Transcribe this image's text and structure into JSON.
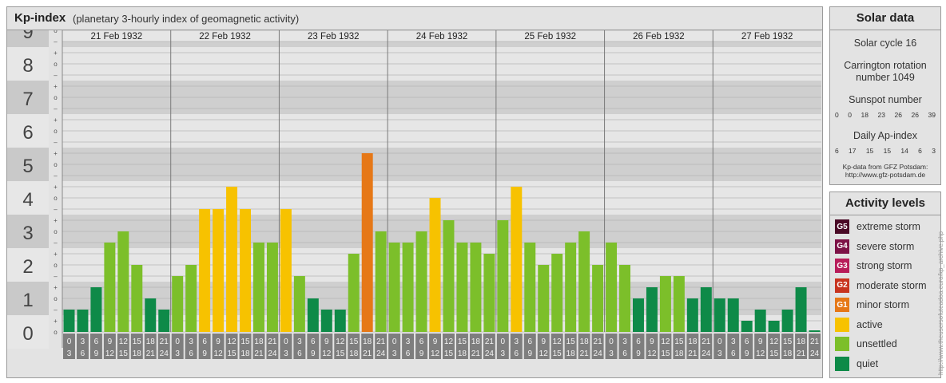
{
  "title": "Kp-index",
  "subtitle": "(planetary 3-hourly index of geomagnetic activity)",
  "chart_data": {
    "type": "bar",
    "y_range": [
      0,
      9
    ],
    "y_tick_labels": [
      "0",
      "1",
      "2",
      "3",
      "4",
      "5",
      "6",
      "7",
      "8",
      "9"
    ],
    "y_subticks": [
      "–",
      "o",
      "+"
    ],
    "days": [
      "21 Feb 1932",
      "22 Feb 1932",
      "23 Feb 1932",
      "24 Feb 1932",
      "25 Feb 1932",
      "26 Feb 1932",
      "27 Feb 1932"
    ],
    "interval_start_labels": [
      "0",
      "3",
      "6",
      "9",
      "12",
      "15",
      "18",
      "21"
    ],
    "interval_end_labels": [
      "3",
      "6",
      "9",
      "12",
      "15",
      "18",
      "21",
      "24"
    ],
    "values": [
      [
        0.667,
        0.667,
        1.333,
        2.667,
        3.0,
        2.0,
        1.0,
        0.667
      ],
      [
        1.667,
        2.0,
        3.667,
        3.667,
        4.333,
        3.667,
        2.667,
        2.667
      ],
      [
        3.667,
        1.667,
        1.0,
        0.667,
        0.667,
        2.333,
        5.333,
        3.0
      ],
      [
        2.667,
        2.667,
        3.0,
        4.0,
        3.333,
        2.667,
        2.667,
        2.333
      ],
      [
        3.333,
        4.333,
        2.667,
        2.0,
        2.333,
        2.667,
        3.0,
        2.0
      ],
      [
        2.667,
        2.0,
        1.0,
        1.333,
        1.667,
        1.667,
        1.0,
        1.333
      ],
      [
        1.0,
        1.0,
        0.333,
        0.667,
        0.333,
        0.667,
        1.333,
        0.0
      ]
    ],
    "last_bar_partial": true
  },
  "activity_colors": {
    "quiet": "#0e8a48",
    "unsettled": "#7cbf2a",
    "active": "#f7c200",
    "minor_storm": "#e67817",
    "moderate_storm": "#c8341f",
    "strong_storm": "#b81d5a",
    "severe_storm": "#7d1146",
    "extreme_storm": "#4a0a26"
  },
  "solar_data": {
    "heading": "Solar data",
    "solar_cycle": "Solar cycle 16",
    "carrington_line1": "Carrington rotation",
    "carrington_line2": "number 1049",
    "sunspot_heading": "Sunspot number",
    "sunspot_values": [
      "0",
      "0",
      "18",
      "23",
      "26",
      "26",
      "39"
    ],
    "ap_heading": "Daily Ap-index",
    "ap_values": [
      "6",
      "17",
      "15",
      "15",
      "14",
      "6",
      "3"
    ],
    "credit_line1": "Kp-data from GFZ Potsdam:",
    "credit_line2": "http://www.gfz-potsdam.de"
  },
  "activity_levels": {
    "heading": "Activity levels",
    "items": [
      {
        "code": "G5",
        "label": "extreme storm",
        "color": "#4a0a26"
      },
      {
        "code": "G4",
        "label": "severe storm",
        "color": "#7d1146"
      },
      {
        "code": "G3",
        "label": "strong storm",
        "color": "#b81d5a"
      },
      {
        "code": "G2",
        "label": "moderate storm",
        "color": "#c8341f"
      },
      {
        "code": "G1",
        "label": "minor storm",
        "color": "#e67817"
      },
      {
        "code": "",
        "label": "active",
        "color": "#f7c200"
      },
      {
        "code": "",
        "label": "unsettled",
        "color": "#7cbf2a"
      },
      {
        "code": "",
        "label": "quiet",
        "color": "#0e8a48"
      }
    ]
  },
  "watermark": "http://www.theusersofuteadoa.euro/kp_archive.php"
}
